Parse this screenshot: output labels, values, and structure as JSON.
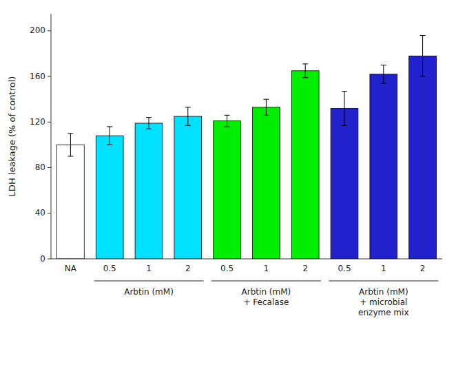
{
  "chart_data": {
    "type": "bar",
    "categories": [
      "NA",
      "0.5",
      "1",
      "2",
      "0.5",
      "1",
      "2",
      "0.5",
      "1",
      "2"
    ],
    "values": [
      100,
      108,
      119,
      125,
      121,
      133,
      165,
      132,
      162,
      178
    ],
    "errors": [
      10,
      8,
      5,
      8,
      5,
      7,
      6,
      15,
      8,
      18
    ],
    "colors": [
      "#ffffff",
      "#00e0ff",
      "#00e0ff",
      "#00e0ff",
      "#00ee00",
      "#00ee00",
      "#00ee00",
      "#2222cc",
      "#2222cc",
      "#2222cc"
    ],
    "ylabel": "LDH leakage (% of control)",
    "ylim": [
      0,
      215
    ],
    "yticks": [
      0,
      40,
      80,
      120,
      160,
      200
    ],
    "grid": false,
    "groups": [
      {
        "label": "Arbtin (mM)",
        "bar_indices": [
          1,
          2,
          3
        ]
      },
      {
        "label": "Arbtin (mM)\n+ Fecalase",
        "bar_indices": [
          4,
          5,
          6
        ]
      },
      {
        "label": "Arbtin (mM)\n+ microbial\nenzyme mix",
        "bar_indices": [
          7,
          8,
          9
        ]
      }
    ]
  }
}
